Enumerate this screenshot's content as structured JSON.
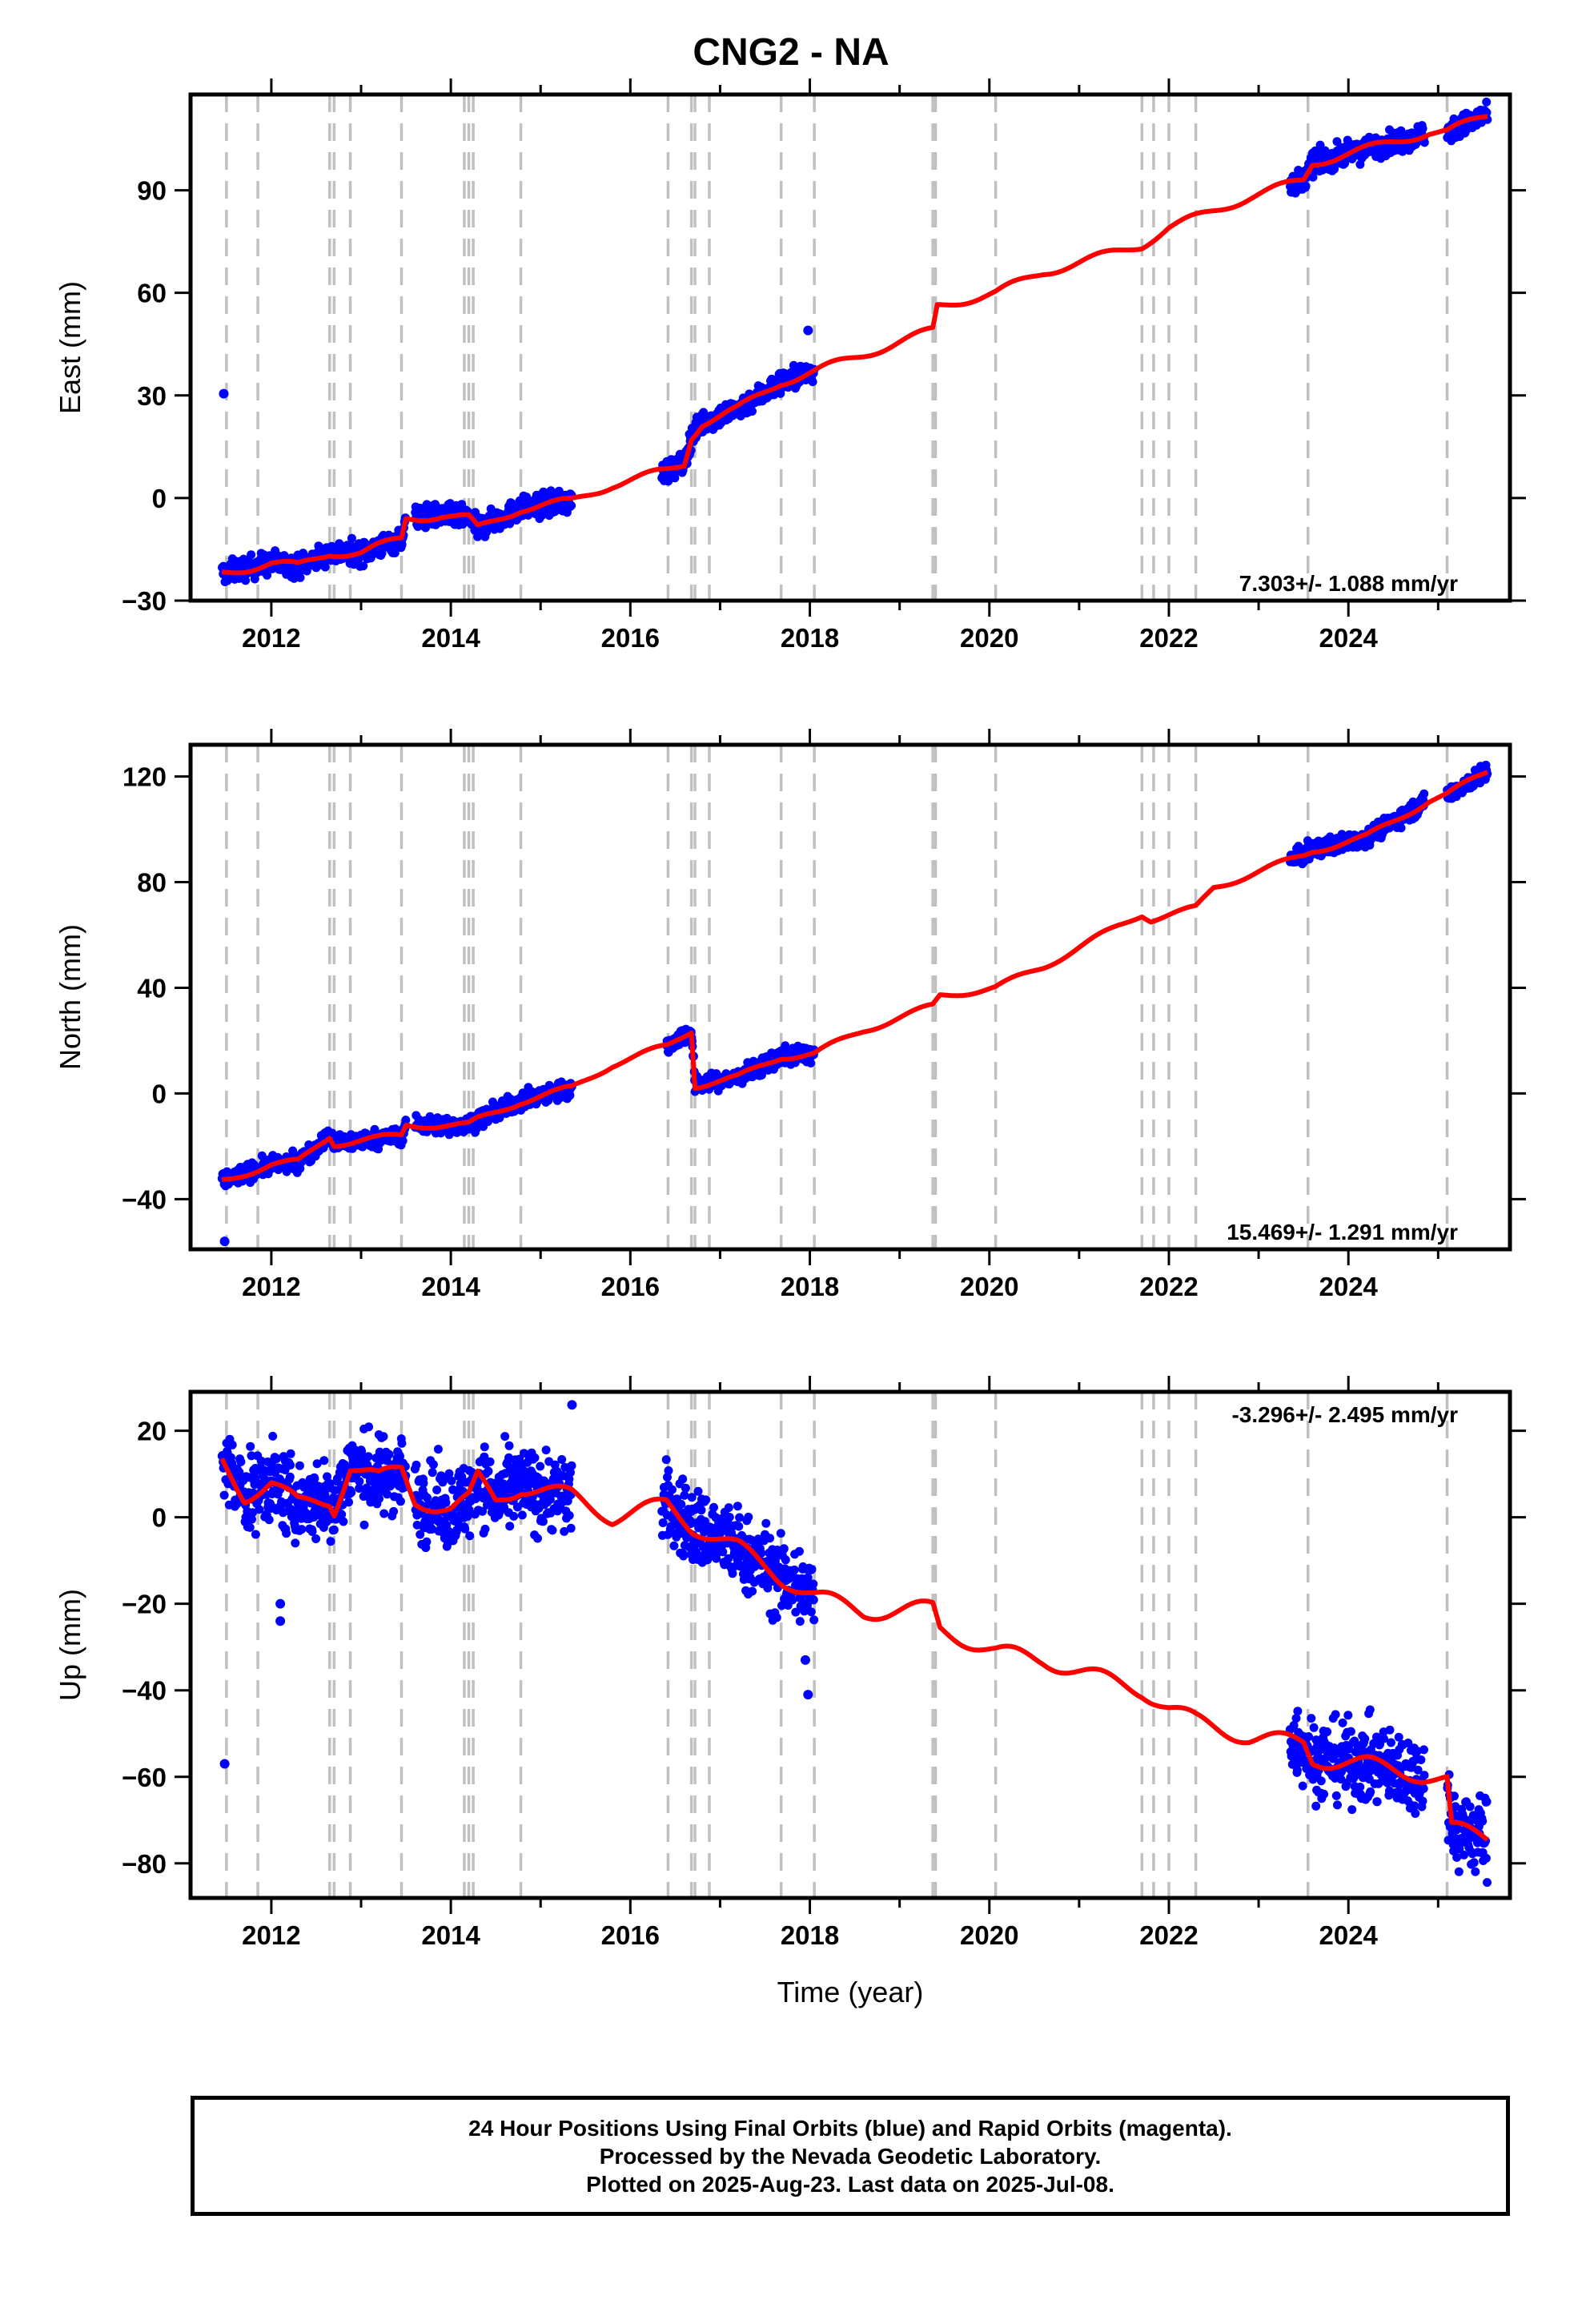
{
  "title": "CNG2 - NA",
  "colors": {
    "points": "#0000ff",
    "model": "#ff0000",
    "events": "#c0c0c0",
    "frame": "#000000"
  },
  "events": [
    2011.5,
    2011.85,
    2012.65,
    2012.7,
    2012.88,
    2013.45,
    2014.15,
    2014.2,
    2014.25,
    2014.78,
    2016.42,
    2016.68,
    2016.72,
    2016.88,
    2017.68,
    2018.05,
    2019.37,
    2019.4,
    2020.07,
    2021.7,
    2021.83,
    2022.0,
    2022.3,
    2023.55,
    2025.1
  ],
  "chart_data": [
    {
      "type": "scatter",
      "name": "east",
      "title": "",
      "xlabel": "",
      "ylabel": "East (mm)",
      "xlim": [
        2011.1,
        2025.8
      ],
      "ylim": [
        -30,
        118
      ],
      "xticks": [
        "2012",
        "2014",
        "2016",
        "2018",
        "2020",
        "2022",
        "2024"
      ],
      "yticks": [
        "−30",
        "0",
        "30",
        "60",
        "90"
      ],
      "yticks_values": [
        -30,
        0,
        30,
        60,
        90
      ],
      "rate": "7.303+/- 1.088 mm/yr",
      "rate_position": "bottom-right",
      "scatter_noise": 2.5,
      "point_spans": [
        [
          2011.45,
          2013.5
        ],
        [
          2013.6,
          2015.35
        ],
        [
          2016.35,
          2018.05
        ],
        [
          2023.35,
          2024.85
        ],
        [
          2025.1,
          2025.55
        ]
      ],
      "outliers": [
        [
          2011.47,
          30.5
        ],
        [
          2017.98,
          49
        ]
      ],
      "model": [
        [
          2011.45,
          -22
        ],
        [
          2012.0,
          -19
        ],
        [
          2012.3,
          -20
        ],
        [
          2012.65,
          -16
        ],
        [
          2012.7,
          -16
        ],
        [
          2013.0,
          -16
        ],
        [
          2013.45,
          -12
        ],
        [
          2013.5,
          -6
        ],
        [
          2013.9,
          -5
        ],
        [
          2014.2,
          -6
        ],
        [
          2014.3,
          -9
        ],
        [
          2014.78,
          -3
        ],
        [
          2015.35,
          -1
        ],
        [
          2015.8,
          4
        ],
        [
          2016.42,
          8
        ],
        [
          2016.6,
          10
        ],
        [
          2016.68,
          18
        ],
        [
          2016.8,
          22
        ],
        [
          2017.2,
          26
        ],
        [
          2017.68,
          34
        ],
        [
          2018.05,
          37
        ],
        [
          2018.6,
          42
        ],
        [
          2019.37,
          49
        ],
        [
          2019.42,
          56
        ],
        [
          2020.07,
          60
        ],
        [
          2020.6,
          66
        ],
        [
          2021.7,
          74
        ],
        [
          2022.0,
          79
        ],
        [
          2022.3,
          82
        ],
        [
          2022.9,
          88
        ],
        [
          2023.5,
          93
        ],
        [
          2023.6,
          98
        ],
        [
          2024.2,
          102
        ],
        [
          2024.9,
          107
        ],
        [
          2025.1,
          107
        ],
        [
          2025.55,
          112
        ]
      ]
    },
    {
      "type": "scatter",
      "name": "north",
      "title": "",
      "xlabel": "",
      "ylabel": "North (mm)",
      "xlim": [
        2011.1,
        2025.8
      ],
      "ylim": [
        -59,
        132
      ],
      "xticks": [
        "2012",
        "2014",
        "2016",
        "2018",
        "2020",
        "2022",
        "2024"
      ],
      "yticks": [
        "−40",
        "0",
        "40",
        "80",
        "120"
      ],
      "yticks_values": [
        -40,
        0,
        40,
        80,
        120
      ],
      "rate": "15.469+/- 1.291 mm/yr",
      "rate_position": "bottom-right",
      "scatter_noise": 2.5,
      "point_spans": [
        [
          2011.45,
          2013.5
        ],
        [
          2013.6,
          2015.35
        ],
        [
          2016.4,
          2016.72
        ],
        [
          2016.72,
          2018.05
        ],
        [
          2023.35,
          2024.85
        ],
        [
          2025.1,
          2025.55
        ]
      ],
      "outliers": [
        [
          2011.48,
          -56
        ]
      ],
      "model": [
        [
          2011.45,
          -33
        ],
        [
          2012.0,
          -27
        ],
        [
          2012.3,
          -26
        ],
        [
          2012.65,
          -16
        ],
        [
          2012.7,
          -19
        ],
        [
          2013.45,
          -16
        ],
        [
          2013.5,
          -12
        ],
        [
          2014.2,
          -12
        ],
        [
          2014.3,
          -10
        ],
        [
          2014.78,
          -3
        ],
        [
          2015.35,
          2
        ],
        [
          2015.8,
          11
        ],
        [
          2016.42,
          18
        ],
        [
          2016.68,
          24
        ],
        [
          2016.72,
          3
        ],
        [
          2017.2,
          6
        ],
        [
          2017.68,
          14
        ],
        [
          2018.05,
          15
        ],
        [
          2018.6,
          24
        ],
        [
          2019.37,
          33
        ],
        [
          2019.45,
          37
        ],
        [
          2020.07,
          40
        ],
        [
          2020.6,
          48
        ],
        [
          2021.7,
          68
        ],
        [
          2021.8,
          66
        ],
        [
          2022.3,
          70
        ],
        [
          2022.5,
          78
        ],
        [
          2023.5,
          90
        ],
        [
          2023.6,
          92
        ],
        [
          2024.2,
          97
        ],
        [
          2024.9,
          111
        ],
        [
          2025.1,
          113
        ],
        [
          2025.55,
          122
        ]
      ]
    },
    {
      "type": "scatter",
      "name": "up",
      "title": "",
      "xlabel": "Time (year)",
      "ylabel": "Up (mm)",
      "xlim": [
        2011.1,
        2025.8
      ],
      "ylim": [
        -88,
        29
      ],
      "xticks": [
        "2012",
        "2014",
        "2016",
        "2018",
        "2020",
        "2022",
        "2024"
      ],
      "yticks": [
        "−80",
        "−60",
        "−40",
        "−20",
        "0",
        "20"
      ],
      "yticks_values": [
        -80,
        -60,
        -40,
        -20,
        0,
        20
      ],
      "rate": "-3.296+/- 2.495 mm/yr",
      "rate_position": "top-right",
      "scatter_noise": 7,
      "point_spans": [
        [
          2011.45,
          2013.5
        ],
        [
          2013.6,
          2015.35
        ],
        [
          2016.35,
          2018.05
        ],
        [
          2023.35,
          2024.85
        ],
        [
          2025.1,
          2025.55
        ]
      ],
      "outliers": [
        [
          2011.48,
          -57
        ],
        [
          2012.1,
          -20
        ],
        [
          2012.1,
          -24
        ],
        [
          2015.35,
          26
        ],
        [
          2017.98,
          -41
        ],
        [
          2017.95,
          -33
        ]
      ],
      "model": [
        [
          2011.45,
          13
        ],
        [
          2011.7,
          5
        ],
        [
          2012.0,
          8
        ],
        [
          2012.3,
          3
        ],
        [
          2012.65,
          4
        ],
        [
          2012.7,
          2
        ],
        [
          2012.88,
          12
        ],
        [
          2013.2,
          9
        ],
        [
          2013.45,
          11
        ],
        [
          2013.6,
          4
        ],
        [
          2014.0,
          2
        ],
        [
          2014.2,
          4
        ],
        [
          2014.3,
          9
        ],
        [
          2014.5,
          4
        ],
        [
          2014.78,
          7
        ],
        [
          2015.35,
          5
        ],
        [
          2015.8,
          0
        ],
        [
          2016.4,
          3
        ],
        [
          2016.68,
          -2
        ],
        [
          2016.9,
          -4
        ],
        [
          2017.2,
          -7
        ],
        [
          2017.68,
          -14
        ],
        [
          2018.05,
          -18
        ],
        [
          2018.6,
          -22
        ],
        [
          2019.37,
          -21
        ],
        [
          2019.45,
          -26
        ],
        [
          2020.07,
          -31
        ],
        [
          2020.6,
          -33
        ],
        [
          2021.7,
          -40
        ],
        [
          2022.0,
          -44
        ],
        [
          2022.3,
          -47
        ],
        [
          2022.9,
          -51
        ],
        [
          2023.5,
          -52
        ],
        [
          2023.6,
          -56
        ],
        [
          2024.2,
          -57
        ],
        [
          2024.9,
          -60
        ],
        [
          2025.1,
          -61
        ],
        [
          2025.15,
          -72
        ],
        [
          2025.55,
          -74
        ]
      ]
    }
  ],
  "footer": {
    "line1": "24 Hour Positions Using Final Orbits (blue) and Rapid Orbits (magenta).",
    "line2": "Processed by the Nevada Geodetic Laboratory.",
    "line3": "Plotted on 2025-Aug-23. Last data on 2025-Jul-08."
  }
}
